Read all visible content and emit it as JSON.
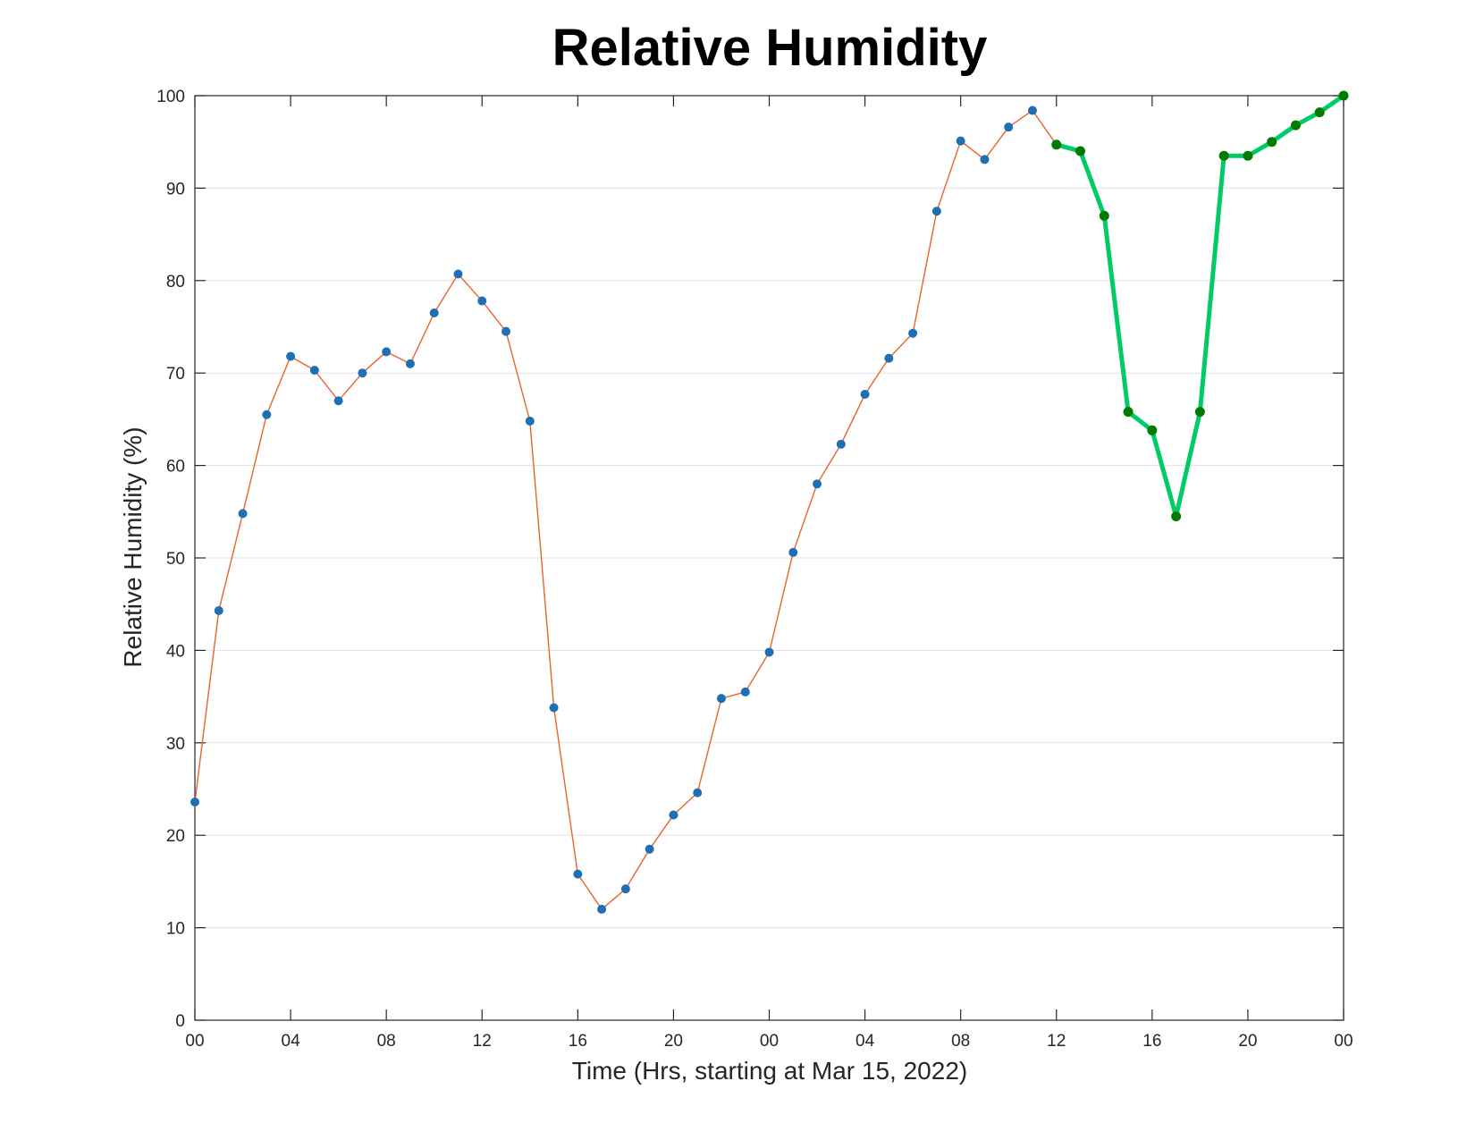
{
  "chart_data": {
    "type": "line",
    "title": "Relative Humidity",
    "xlabel": "Time (Hrs, starting at Mar 15, 2022)",
    "ylabel": "Relative Humidity (%)",
    "xlim": [
      0,
      48
    ],
    "ylim": [
      0,
      100
    ],
    "grid": "horizontal",
    "x_ticks": [
      0,
      4,
      8,
      12,
      16,
      20,
      24,
      28,
      32,
      36,
      40,
      44,
      48
    ],
    "x_tick_labels": [
      "00",
      "04",
      "08",
      "12",
      "16",
      "20",
      "00",
      "04",
      "08",
      "12",
      "16",
      "20",
      "00"
    ],
    "y_ticks": [
      0,
      10,
      20,
      30,
      40,
      50,
      60,
      70,
      80,
      90,
      100
    ],
    "y_tick_labels": [
      "0",
      "10",
      "20",
      "30",
      "40",
      "50",
      "60",
      "70",
      "80",
      "90",
      "100"
    ],
    "x": [
      0,
      1,
      2,
      3,
      4,
      5,
      6,
      7,
      8,
      9,
      10,
      11,
      12,
      13,
      14,
      15,
      16,
      17,
      18,
      19,
      20,
      21,
      22,
      23,
      24,
      25,
      26,
      27,
      28,
      29,
      30,
      31,
      32,
      33,
      34,
      35,
      36,
      37,
      38,
      39,
      40,
      41,
      42,
      43,
      44,
      45,
      46,
      47,
      48
    ],
    "series": [
      {
        "style": "thin-line-with-markers",
        "line_color": "#E8642C",
        "marker_color": "#1F6FB4",
        "x": [
          0,
          1,
          2,
          3,
          4,
          5,
          6,
          7,
          8,
          9,
          10,
          11,
          12,
          13,
          14,
          15,
          16,
          17,
          18,
          19,
          20,
          21,
          22,
          23,
          24,
          25,
          26,
          27,
          28,
          29,
          30,
          31,
          32,
          33,
          34,
          35,
          36
        ],
        "values": [
          23.6,
          44.3,
          54.8,
          65.5,
          71.8,
          70.3,
          67.0,
          70.0,
          72.3,
          71.0,
          76.5,
          80.7,
          77.8,
          74.5,
          64.8,
          33.8,
          15.8,
          12.0,
          14.2,
          18.5,
          22.2,
          24.6,
          34.8,
          35.5,
          39.8,
          50.6,
          58.0,
          62.3,
          67.7,
          71.6,
          74.3,
          87.5,
          95.1,
          93.1,
          96.6,
          98.4,
          94.7
        ]
      },
      {
        "style": "thick-line-with-markers",
        "line_color": "#00CC66",
        "marker_color": "#007A00",
        "x": [
          36,
          37,
          38,
          39,
          40,
          41,
          42,
          43,
          44,
          45,
          46,
          47,
          48
        ],
        "values": [
          94.7,
          94.0,
          87.0,
          65.8,
          63.8,
          54.5,
          65.8,
          93.5,
          93.5,
          95.0,
          96.8,
          98.2,
          100.0
        ]
      }
    ]
  }
}
